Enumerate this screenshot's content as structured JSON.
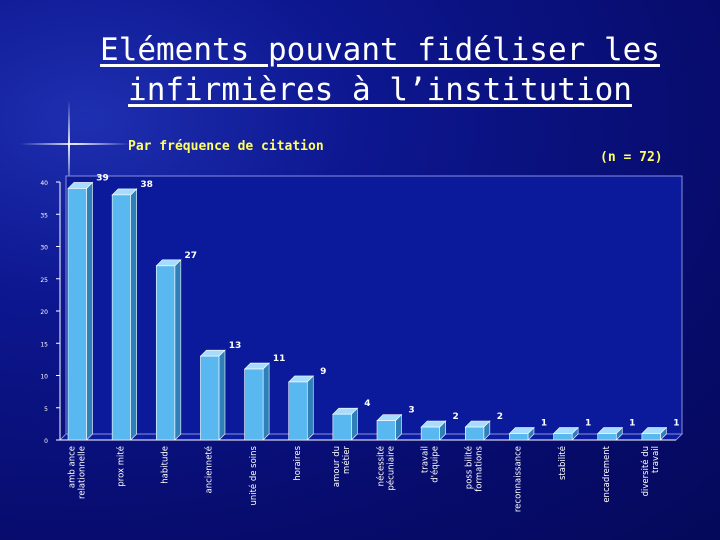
{
  "title": "Eléments pouvant fidéliser les infirmières à l’institution",
  "subtitle": "Par fréquence de citation",
  "sample_note": "(n = 72)",
  "colors": {
    "bar": "#5ab8f0",
    "bar_side": "#2f7fb8",
    "bar_top": "#a8dcff",
    "text": "#ffffff"
  },
  "chart_data": {
    "type": "bar",
    "categories": [
      "amb ance relationnelle",
      "prox mité",
      "habitude",
      "ancienneté",
      "unité de soins",
      "horaires",
      "amour du métier",
      "nécessité pécuniaire",
      "travail d'équipe",
      "poss bilité formations",
      "reconnaissance",
      "stabilité",
      "encadrement",
      "diversité du travail"
    ],
    "values": [
      39,
      38,
      27,
      13,
      11,
      9,
      4,
      3,
      2,
      2,
      1,
      1,
      1,
      1
    ],
    "yticks": [
      "0",
      "5",
      "10",
      "15",
      "20",
      "25",
      "30",
      "35",
      "40"
    ],
    "ylim": [
      0,
      40
    ],
    "grid": false
  }
}
